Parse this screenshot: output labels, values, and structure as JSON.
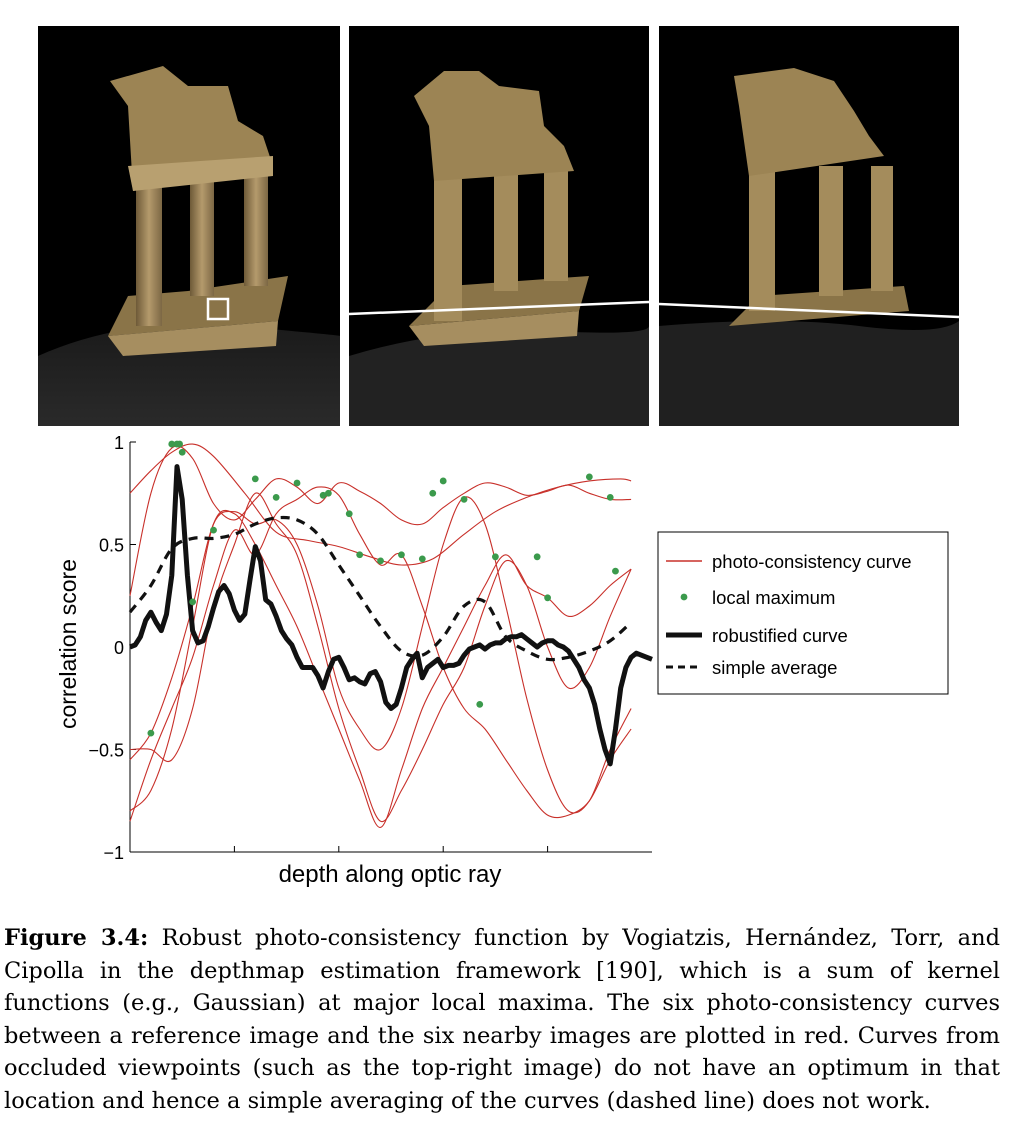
{
  "photos": [
    {
      "name": "reference-view",
      "highlight": "square"
    },
    {
      "name": "nearby-view",
      "highlight": "epipolar-line"
    },
    {
      "name": "occluded-view",
      "highlight": "epipolar-line"
    }
  ],
  "chart_data": {
    "type": "line",
    "title": "",
    "xlabel": "depth along optic ray",
    "ylabel": "correlation score",
    "xlim": [
      0,
      1
    ],
    "ylim": [
      -1,
      1
    ],
    "yticks": [
      -1,
      -0.5,
      0,
      0.5,
      1
    ],
    "ytick_labels": [
      "−1",
      "−0.5",
      "0",
      "0.5",
      "1"
    ],
    "xticks": [
      0.2,
      0.4,
      0.6,
      0.8
    ],
    "grid": false,
    "legend_position": "right",
    "legend": [
      {
        "label": "photo-consistency curve",
        "style": "red-thin-line"
      },
      {
        "label": "local maximum",
        "style": "green-dot"
      },
      {
        "label": "robustified curve",
        "style": "black-thick-line"
      },
      {
        "label": "simple average",
        "style": "black-dashed-line"
      }
    ],
    "colors": {
      "curve": "#c8302a",
      "maximum": "#3b9a4c",
      "robust": "#111111",
      "average": "#111111"
    },
    "series": [
      {
        "role": "photo-consistency",
        "x": [
          0,
          0.04,
          0.08,
          0.12,
          0.16,
          0.22,
          0.28,
          0.34,
          0.4,
          0.46,
          0.52,
          0.58,
          0.64,
          0.7,
          0.76,
          0.82,
          0.88,
          0.94,
          0.96
        ],
        "y": [
          0.75,
          0.86,
          0.95,
          0.99,
          0.93,
          0.75,
          0.56,
          0.52,
          0.49,
          0.44,
          0.4,
          0.43,
          0.55,
          0.66,
          0.73,
          0.78,
          0.81,
          0.82,
          0.81
        ]
      },
      {
        "role": "photo-consistency",
        "x": [
          0,
          0.04,
          0.08,
          0.12,
          0.16,
          0.2,
          0.24,
          0.28,
          0.32,
          0.36,
          0.4,
          0.44,
          0.48,
          0.52,
          0.56,
          0.6,
          0.64,
          0.68,
          0.72,
          0.76,
          0.8,
          0.84,
          0.88,
          0.92,
          0.96
        ],
        "y": [
          0.25,
          0.75,
          0.97,
          0.92,
          0.7,
          0.62,
          0.72,
          0.82,
          0.78,
          0.7,
          0.8,
          0.76,
          0.7,
          0.62,
          0.6,
          0.68,
          0.75,
          0.8,
          0.78,
          0.74,
          0.76,
          0.79,
          0.75,
          0.72,
          0.72
        ]
      },
      {
        "role": "photo-consistency",
        "x": [
          0,
          0.04,
          0.08,
          0.12,
          0.16,
          0.2,
          0.24,
          0.28,
          0.32,
          0.36,
          0.4,
          0.44,
          0.48,
          0.52,
          0.56,
          0.6,
          0.64,
          0.68,
          0.72,
          0.76,
          0.8,
          0.84,
          0.88,
          0.92,
          0.96
        ],
        "y": [
          -0.85,
          -0.55,
          -0.3,
          -0.05,
          0.3,
          0.57,
          0.45,
          0.65,
          0.72,
          0.78,
          0.74,
          0.55,
          0.4,
          0.45,
          0.2,
          -0.1,
          -0.3,
          -0.4,
          -0.55,
          -0.7,
          -0.82,
          -0.82,
          -0.75,
          -0.55,
          -0.4
        ]
      },
      {
        "role": "photo-consistency",
        "x": [
          0,
          0.04,
          0.08,
          0.12,
          0.16,
          0.2,
          0.24,
          0.28,
          0.32,
          0.36,
          0.4,
          0.44,
          0.48,
          0.52,
          0.56,
          0.6,
          0.64,
          0.68,
          0.72,
          0.76,
          0.8,
          0.84,
          0.88,
          0.92,
          0.96
        ],
        "y": [
          -0.55,
          -0.42,
          -0.15,
          0.2,
          0.6,
          0.66,
          0.6,
          0.62,
          0.5,
          0.2,
          -0.2,
          -0.4,
          -0.5,
          -0.3,
          0.1,
          0.5,
          0.73,
          0.6,
          0.2,
          -0.25,
          -0.6,
          -0.8,
          -0.75,
          -0.5,
          -0.3
        ]
      },
      {
        "role": "photo-consistency",
        "x": [
          0,
          0.04,
          0.08,
          0.12,
          0.16,
          0.2,
          0.24,
          0.28,
          0.32,
          0.36,
          0.4,
          0.44,
          0.48,
          0.52,
          0.56,
          0.6,
          0.64,
          0.68,
          0.72,
          0.76,
          0.8,
          0.84,
          0.88,
          0.92,
          0.96
        ],
        "y": [
          -0.5,
          -0.5,
          -0.55,
          -0.3,
          0.2,
          0.5,
          0.75,
          0.6,
          0.45,
          0.1,
          -0.3,
          -0.6,
          -0.85,
          -0.7,
          -0.5,
          -0.28,
          -0.1,
          0.2,
          0.42,
          0.3,
          0.0,
          -0.2,
          -0.1,
          0.15,
          0.38
        ]
      },
      {
        "role": "photo-consistency",
        "x": [
          0,
          0.04,
          0.08,
          0.12,
          0.16,
          0.2,
          0.24,
          0.28,
          0.32,
          0.36,
          0.4,
          0.44,
          0.48,
          0.52,
          0.56,
          0.6,
          0.64,
          0.68,
          0.72,
          0.76,
          0.8,
          0.84,
          0.88,
          0.92,
          0.96
        ],
        "y": [
          -0.8,
          -0.7,
          -0.4,
          0.1,
          0.6,
          0.65,
          0.5,
          0.3,
          0.1,
          -0.15,
          -0.4,
          -0.65,
          -0.88,
          -0.6,
          -0.3,
          -0.1,
          0.1,
          0.3,
          0.45,
          0.3,
          0.24,
          0.15,
          0.2,
          0.3,
          0.38
        ]
      },
      {
        "role": "robustified",
        "x": [
          0,
          0.01,
          0.02,
          0.03,
          0.04,
          0.05,
          0.06,
          0.07,
          0.08,
          0.09,
          0.1,
          0.11,
          0.12,
          0.13,
          0.14,
          0.15,
          0.16,
          0.17,
          0.18,
          0.19,
          0.2,
          0.21,
          0.22,
          0.23,
          0.24,
          0.25,
          0.26,
          0.27,
          0.28,
          0.29,
          0.3,
          0.31,
          0.32,
          0.33,
          0.34,
          0.35,
          0.36,
          0.37,
          0.38,
          0.39,
          0.4,
          0.41,
          0.42,
          0.43,
          0.44,
          0.45,
          0.46,
          0.47,
          0.48,
          0.49,
          0.5,
          0.51,
          0.52,
          0.53,
          0.54,
          0.55,
          0.56,
          0.57,
          0.58,
          0.59,
          0.6,
          0.61,
          0.62,
          0.63,
          0.64,
          0.65,
          0.66,
          0.67,
          0.68,
          0.69,
          0.7,
          0.71,
          0.72,
          0.73,
          0.74,
          0.75,
          0.76,
          0.77,
          0.78,
          0.79,
          0.8,
          0.81,
          0.82,
          0.83,
          0.84,
          0.85,
          0.86,
          0.87,
          0.88,
          0.89,
          0.9,
          0.91,
          0.92,
          0.93,
          0.94,
          0.95,
          0.96,
          0.97,
          0.99,
          1.0
        ],
        "y": [
          0.0,
          0.01,
          0.05,
          0.13,
          0.17,
          0.12,
          0.08,
          0.16,
          0.35,
          0.88,
          0.72,
          0.35,
          0.08,
          0.02,
          0.03,
          0.1,
          0.19,
          0.27,
          0.3,
          0.26,
          0.18,
          0.13,
          0.16,
          0.33,
          0.49,
          0.42,
          0.23,
          0.21,
          0.15,
          0.08,
          0.04,
          0.01,
          -0.05,
          -0.1,
          -0.1,
          -0.1,
          -0.14,
          -0.2,
          -0.12,
          -0.06,
          -0.05,
          -0.1,
          -0.16,
          -0.15,
          -0.17,
          -0.18,
          -0.13,
          -0.12,
          -0.17,
          -0.27,
          -0.3,
          -0.28,
          -0.2,
          -0.1,
          -0.06,
          -0.03,
          -0.15,
          -0.1,
          -0.08,
          -0.06,
          -0.1,
          -0.09,
          -0.09,
          -0.08,
          -0.04,
          -0.01,
          0.0,
          0.01,
          -0.01,
          0.01,
          0.02,
          0.02,
          0.04,
          0.05,
          0.05,
          0.06,
          0.04,
          0.02,
          0.0,
          0.02,
          0.03,
          0.03,
          0.01,
          0.0,
          -0.02,
          -0.06,
          -0.1,
          -0.16,
          -0.2,
          -0.28,
          -0.4,
          -0.5,
          -0.57,
          -0.4,
          -0.2,
          -0.1,
          -0.05,
          -0.03,
          -0.05,
          -0.06
        ]
      },
      {
        "role": "simple-average",
        "x": [
          0,
          0.04,
          0.08,
          0.12,
          0.16,
          0.2,
          0.24,
          0.28,
          0.32,
          0.36,
          0.4,
          0.44,
          0.48,
          0.52,
          0.56,
          0.6,
          0.64,
          0.68,
          0.72,
          0.76,
          0.8,
          0.84,
          0.88,
          0.92,
          0.96
        ],
        "y": [
          0.17,
          0.3,
          0.48,
          0.53,
          0.53,
          0.55,
          0.6,
          0.63,
          0.62,
          0.55,
          0.4,
          0.25,
          0.1,
          -0.02,
          -0.04,
          0.05,
          0.2,
          0.22,
          0.05,
          -0.02,
          -0.06,
          -0.05,
          -0.02,
          0.03,
          0.12
        ]
      }
    ],
    "local_maxima": {
      "x": [
        0.08,
        0.09,
        0.095,
        0.1,
        0.16,
        0.24,
        0.28,
        0.32,
        0.37,
        0.38,
        0.42,
        0.44,
        0.48,
        0.52,
        0.56,
        0.58,
        0.6,
        0.64,
        0.67,
        0.7,
        0.78,
        0.8,
        0.88,
        0.92,
        0.93,
        0.12,
        0.04
      ],
      "y": [
        0.99,
        0.99,
        0.99,
        0.95,
        0.57,
        0.82,
        0.73,
        0.8,
        0.74,
        0.75,
        0.65,
        0.45,
        0.42,
        0.45,
        0.43,
        0.75,
        0.81,
        0.72,
        -0.28,
        0.44,
        0.44,
        0.24,
        0.83,
        0.73,
        0.37,
        0.22,
        -0.42
      ]
    }
  },
  "caption": {
    "label": "Figure 3.4:",
    "text": " Robust photo-consistency function by Vogiatzis, Hernández, Torr, and Cipolla in the depthmap estimation framework [190], which is a sum of kernel functions (e.g., Gaussian) at major local maxima. The six photo-consistency curves between a reference image and the six nearby images are plotted in red. Curves from occluded viewpoints (such as the top-right image) do not have an optimum in that location and hence a simple averaging of the curves (dashed line) does not work."
  }
}
